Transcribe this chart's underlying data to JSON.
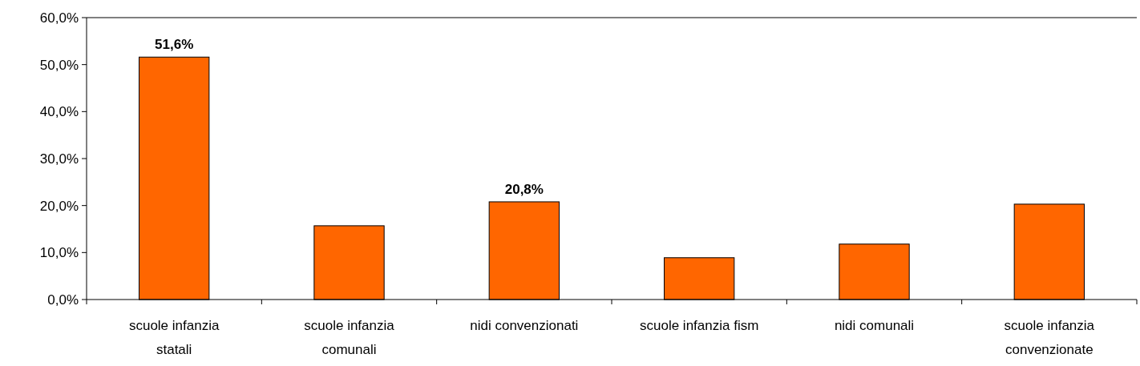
{
  "chart_data": {
    "type": "bar",
    "categories": [
      "scuole infanzia statali",
      "scuole infanzia comunali",
      "nidi convenzionati",
      "scuole infanzia fism",
      "nidi comunali",
      "scuole infanzia convenzionate"
    ],
    "values": [
      51.6,
      15.7,
      20.8,
      8.9,
      11.8,
      20.3
    ],
    "value_labels": [
      "51,6%",
      null,
      "20,8%",
      null,
      null,
      null
    ],
    "color": "#ff6600",
    "ylim": [
      0,
      60
    ],
    "yticks": [
      {
        "value": 0,
        "label": "0,0%"
      },
      {
        "value": 10,
        "label": "10,0%"
      },
      {
        "value": 20,
        "label": "20,0%"
      },
      {
        "value": 30,
        "label": "30,0%"
      },
      {
        "value": 40,
        "label": "40,0%"
      },
      {
        "value": 50,
        "label": "50,0%"
      },
      {
        "value": 60,
        "label": "60,0%"
      }
    ],
    "grid": false
  }
}
